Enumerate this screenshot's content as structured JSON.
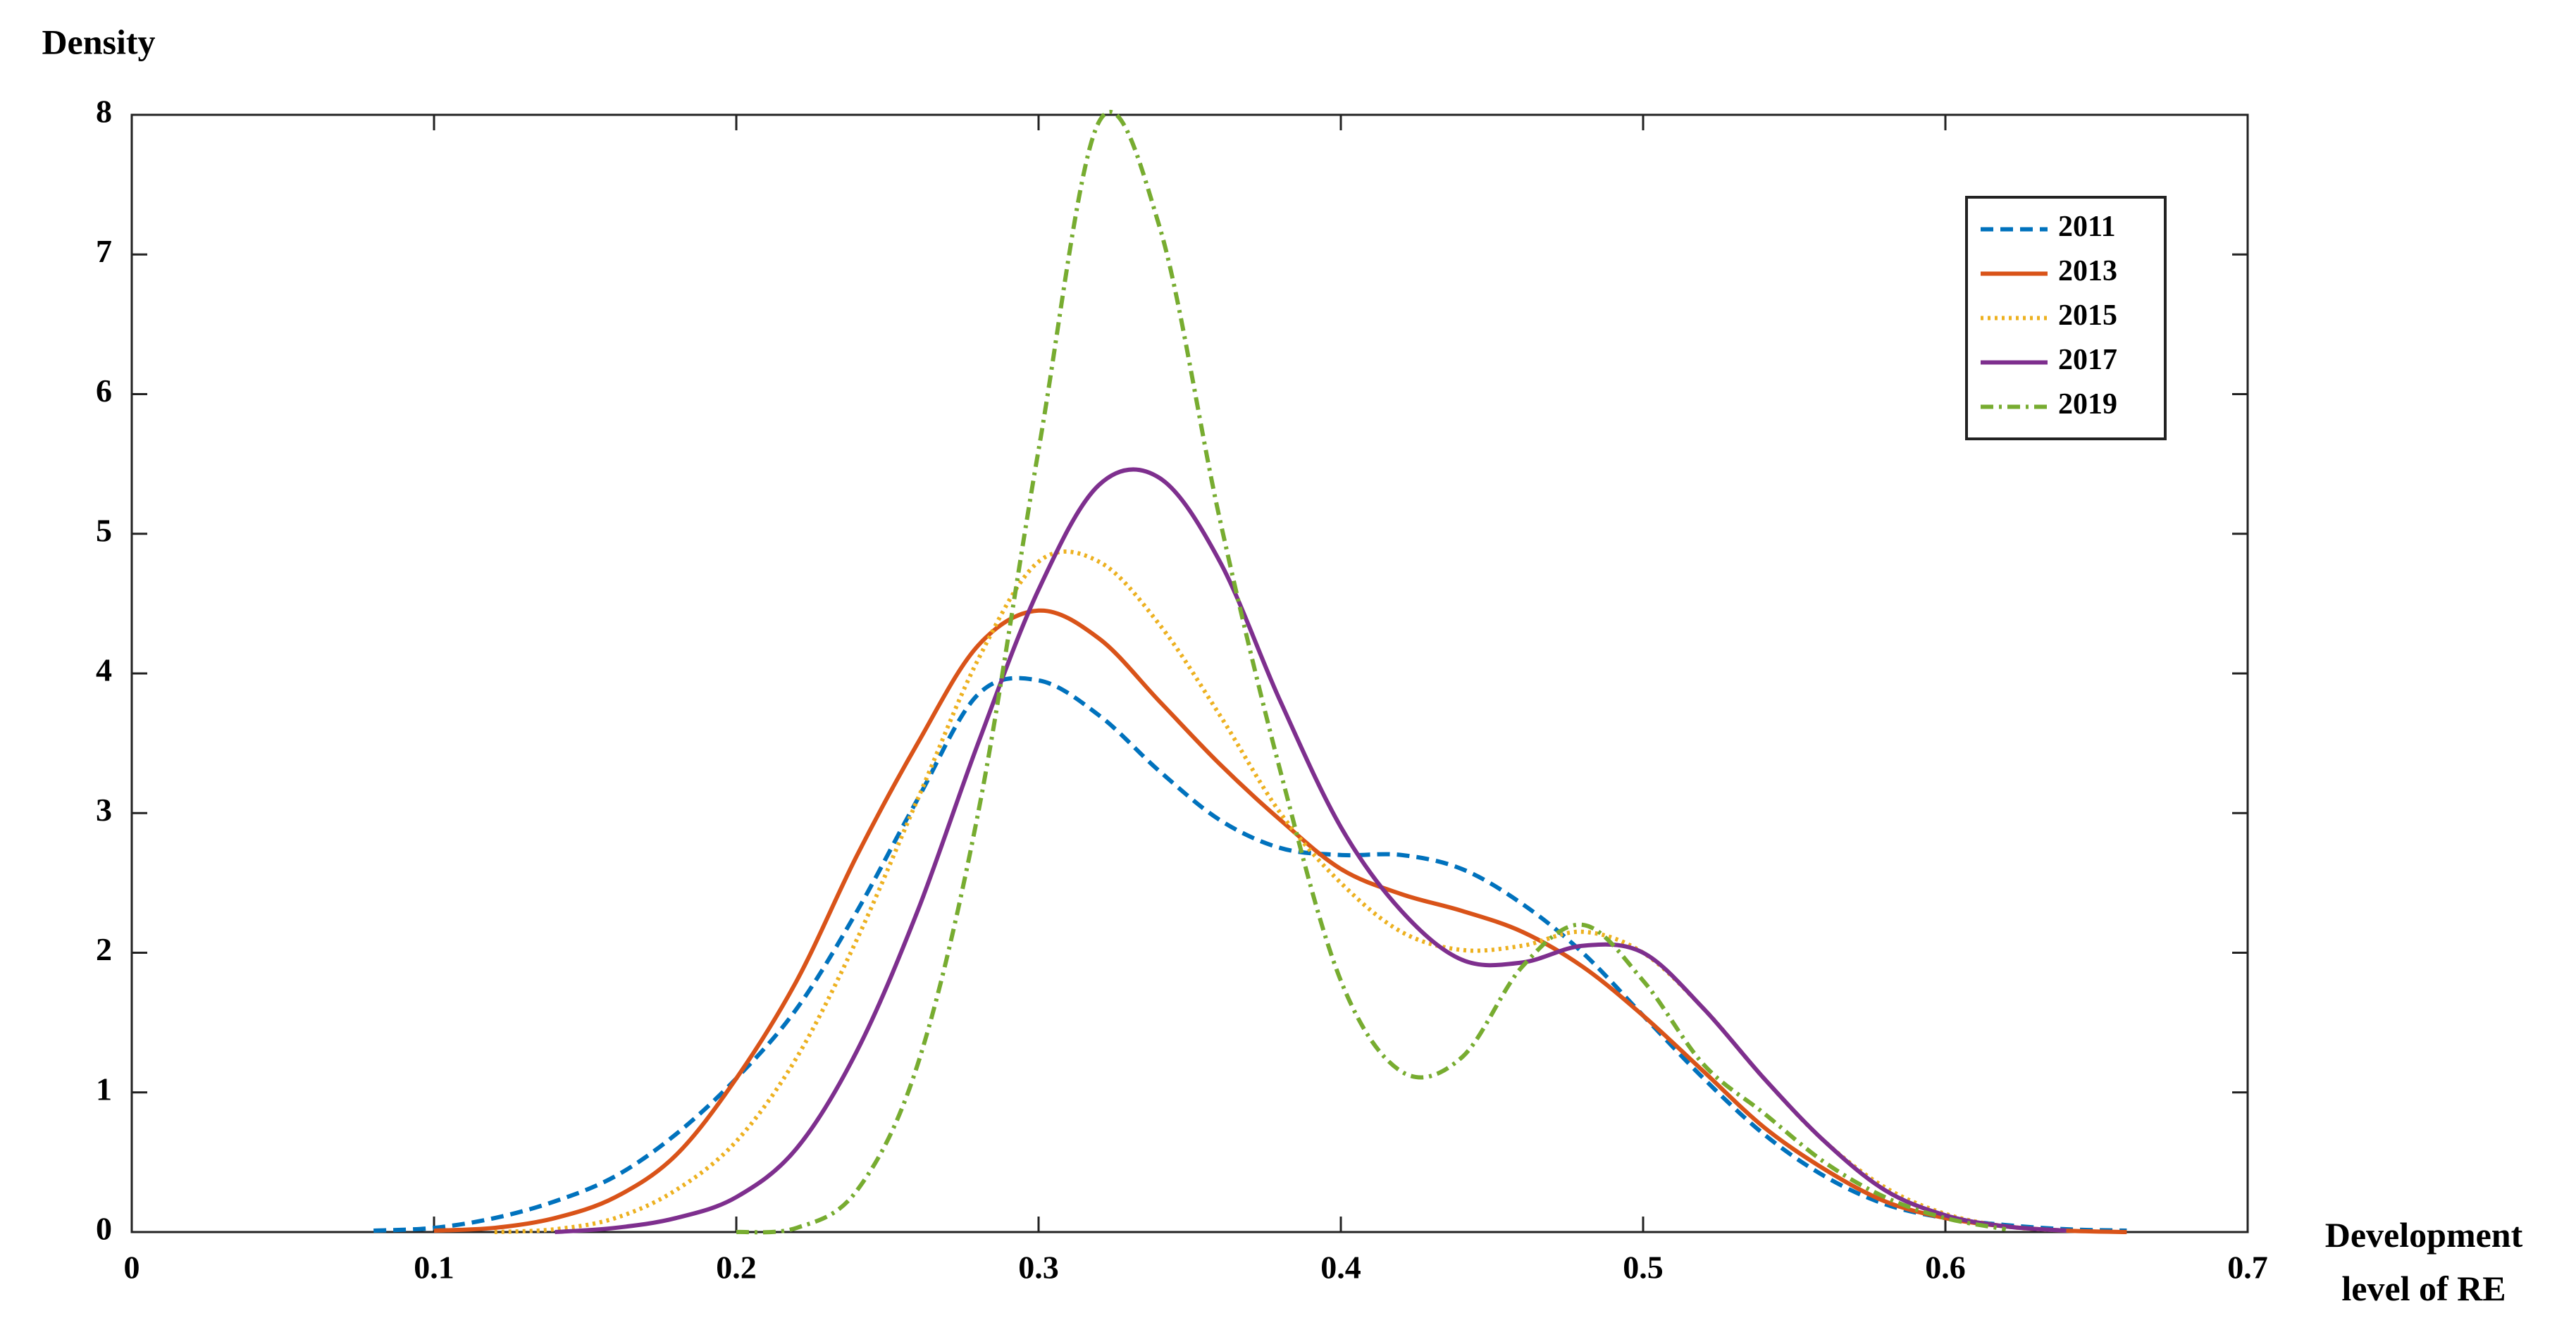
{
  "chart_data": {
    "type": "line",
    "ylabel": "Density",
    "xlabel": "Development\nlevel of RE",
    "x": [
      0.06,
      0.08,
      0.1,
      0.12,
      0.14,
      0.16,
      0.18,
      0.2,
      0.22,
      0.24,
      0.26,
      0.28,
      0.3,
      0.32,
      0.34,
      0.36,
      0.38,
      0.4,
      0.42,
      0.44,
      0.46,
      0.48,
      0.5,
      0.52,
      0.54,
      0.56,
      0.58,
      0.6,
      0.62,
      0.64,
      0.66
    ],
    "series": [
      {
        "name": "2011",
        "color": "#0072BD",
        "linestyle": "dashed",
        "values": [
          null,
          0.01,
          0.03,
          0.1,
          0.22,
          0.4,
          0.7,
          1.1,
          1.6,
          2.3,
          3.1,
          3.85,
          3.95,
          3.7,
          3.3,
          2.95,
          2.75,
          2.7,
          2.7,
          2.6,
          2.35,
          2.0,
          1.55,
          1.1,
          0.7,
          0.4,
          0.2,
          0.1,
          0.05,
          0.02,
          0.01
        ]
      },
      {
        "name": "2013",
        "color": "#D95319",
        "linestyle": "solid",
        "values": [
          null,
          null,
          0.01,
          0.03,
          0.1,
          0.25,
          0.55,
          1.1,
          1.8,
          2.7,
          3.5,
          4.2,
          4.45,
          4.25,
          3.8,
          3.35,
          2.95,
          2.6,
          2.42,
          2.3,
          2.15,
          1.9,
          1.55,
          1.15,
          0.75,
          0.45,
          0.22,
          0.1,
          0.04,
          0.01,
          0
        ]
      },
      {
        "name": "2015",
        "color": "#EDB120",
        "linestyle": "dotted",
        "values": [
          null,
          null,
          null,
          0,
          0.02,
          0.1,
          0.3,
          0.65,
          1.25,
          2.1,
          3.1,
          4.1,
          4.8,
          4.8,
          4.35,
          3.7,
          3.0,
          2.5,
          2.15,
          2.02,
          2.05,
          2.15,
          2.0,
          1.6,
          1.1,
          0.65,
          0.32,
          0.13,
          0.04,
          0.01,
          null
        ]
      },
      {
        "name": "2017",
        "color": "#7E2F8E",
        "linestyle": "solid",
        "values": [
          null,
          null,
          null,
          null,
          0,
          0.03,
          0.1,
          0.25,
          0.6,
          1.3,
          2.3,
          3.5,
          4.6,
          5.35,
          5.4,
          4.8,
          3.8,
          2.9,
          2.3,
          1.95,
          1.93,
          2.05,
          2.0,
          1.6,
          1.1,
          0.65,
          0.3,
          0.12,
          0.04,
          0.01,
          null
        ]
      },
      {
        "name": "2019",
        "color": "#77AC30",
        "linestyle": "dashdot",
        "values": [
          null,
          null,
          null,
          null,
          null,
          null,
          null,
          0,
          0.03,
          0.3,
          1.2,
          3.0,
          5.6,
          7.95,
          7.2,
          5.1,
          3.3,
          1.8,
          1.15,
          1.25,
          1.9,
          2.2,
          1.8,
          1.2,
          0.85,
          0.5,
          0.25,
          0.1,
          0.02,
          null,
          null
        ]
      }
    ],
    "xlim": [
      0,
      0.7
    ],
    "xticks": [
      0,
      0.1,
      0.2,
      0.3,
      0.4,
      0.5,
      0.6,
      0.7
    ],
    "ylim": [
      0,
      8
    ],
    "yticks": [
      0,
      1,
      2,
      3,
      4,
      5,
      6,
      7,
      8
    ],
    "grid": false,
    "legend": "upper right"
  }
}
